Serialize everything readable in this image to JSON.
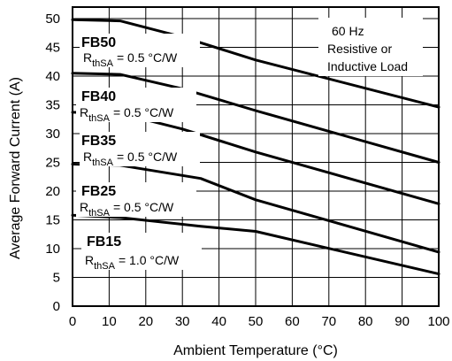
{
  "chart_data": {
    "type": "line",
    "title": "",
    "xlabel": "Ambient Temperature (°C)",
    "ylabel": "Average Forward Current (A)",
    "xlim": [
      0,
      100
    ],
    "ylim": [
      0,
      52
    ],
    "xticks": [
      0,
      10,
      20,
      30,
      40,
      50,
      60,
      70,
      80,
      90,
      100
    ],
    "yticks": [
      0,
      5,
      10,
      15,
      20,
      25,
      30,
      35,
      40,
      45,
      50
    ],
    "grid": true,
    "annotation": [
      "60 Hz",
      "Resistive or",
      "Inductive Load"
    ],
    "series": [
      {
        "name": "FB50",
        "rth_sub": "thSA",
        "rth_value": "= 0.5 °C/W",
        "points": [
          [
            0,
            49.8
          ],
          [
            13,
            49.6
          ],
          [
            30,
            46.8
          ],
          [
            50,
            42.8
          ],
          [
            100,
            34.6
          ]
        ]
      },
      {
        "name": "FB40",
        "rth_sub": "thSA",
        "rth_value": "= 0.5 °C/W",
        "points": [
          [
            0,
            40.5
          ],
          [
            13,
            40.3
          ],
          [
            30,
            37.8
          ],
          [
            50,
            34.0
          ],
          [
            100,
            25.0
          ]
        ]
      },
      {
        "name": "FB35",
        "rth_sub": "thSA",
        "rth_value": "= 0.5 °C/W",
        "points": [
          [
            0,
            33.7
          ],
          [
            13,
            33.5
          ],
          [
            30,
            30.8
          ],
          [
            50,
            26.8
          ],
          [
            100,
            17.8
          ]
        ]
      },
      {
        "name": "FB25",
        "rth_sub": "thSA",
        "rth_value": "= 0.5 °C/W",
        "points": [
          [
            0,
            24.7
          ],
          [
            13,
            24.5
          ],
          [
            35,
            22.2
          ],
          [
            50,
            18.5
          ],
          [
            100,
            9.4
          ]
        ]
      },
      {
        "name": "FB15",
        "rth_sub": "thSA",
        "rth_value": "= 1.0 °C/W",
        "points": [
          [
            0,
            15.8
          ],
          [
            13,
            15.4
          ],
          [
            35,
            13.9
          ],
          [
            50,
            13.0
          ],
          [
            100,
            5.6
          ]
        ]
      }
    ]
  }
}
